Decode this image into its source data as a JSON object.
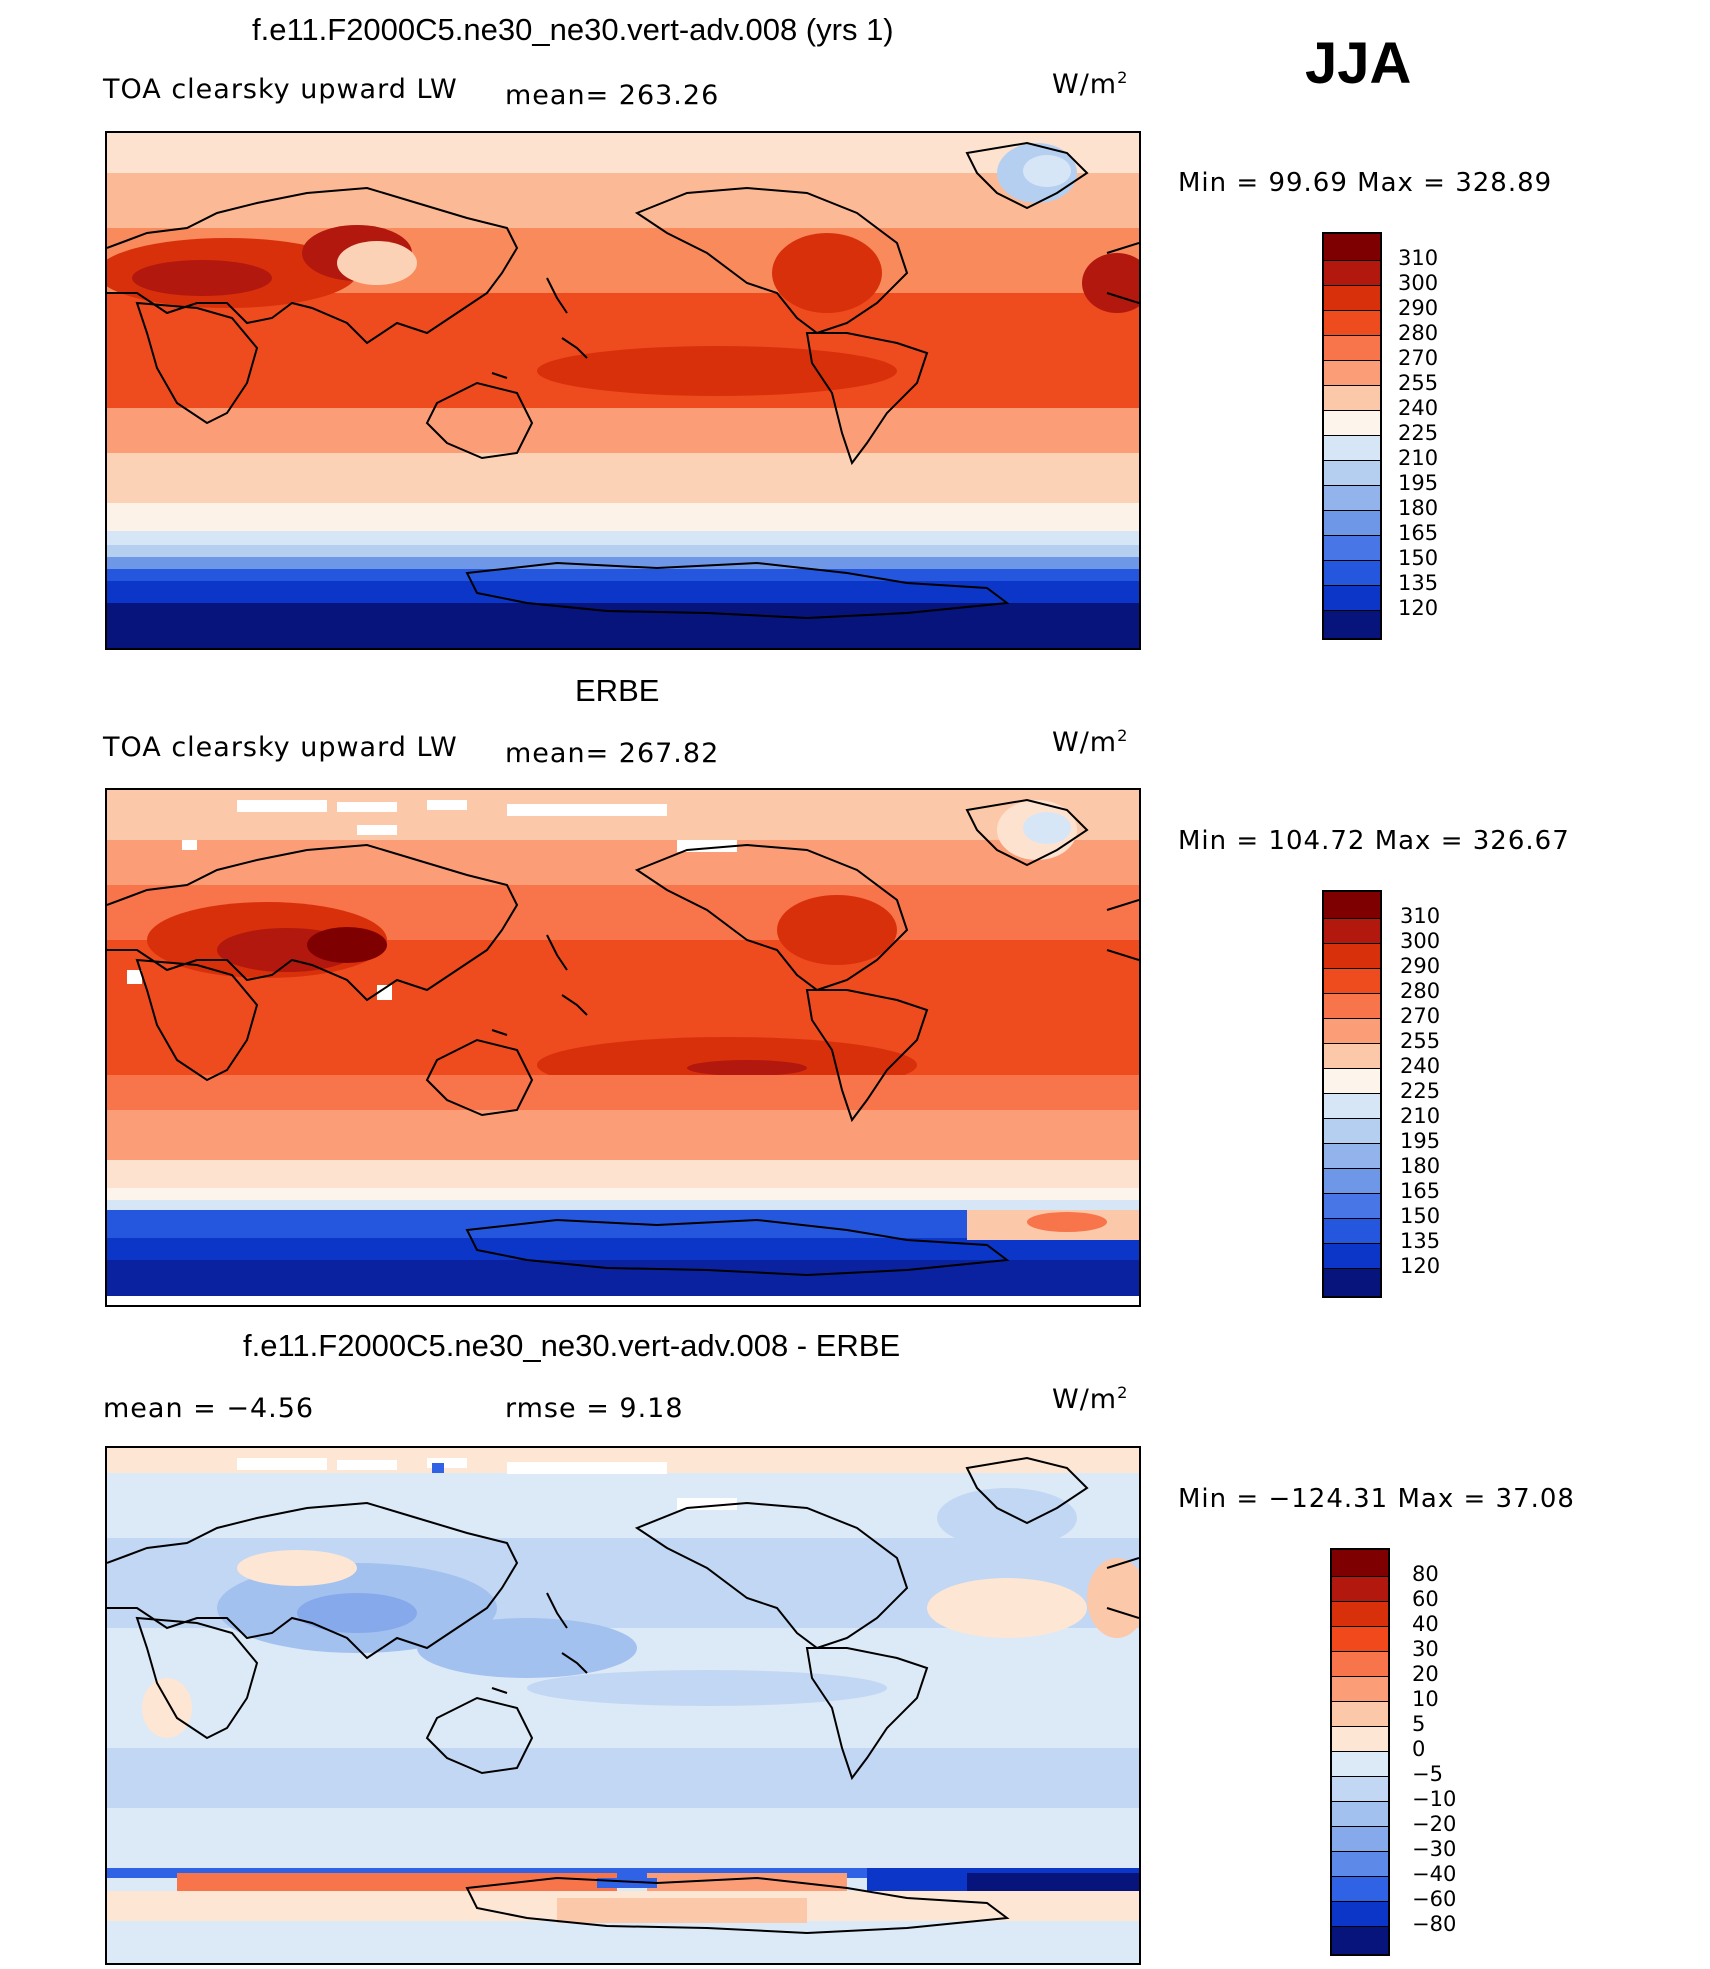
{
  "season": "JJA",
  "units_base": "W/m",
  "units_exp": "2",
  "panels": [
    {
      "title": "f.e11.F2000C5.ne30_ne30.vert-adv.008 (yrs 1)",
      "left_text": "TOA clearsky upward LW",
      "stat_text": "mean=  263.26",
      "minmax": "Min  =    99.69  Max  =  328.89",
      "levels": [
        "310",
        "300",
        "290",
        "280",
        "270",
        "255",
        "240",
        "225",
        "210",
        "195",
        "180",
        "165",
        "150",
        "135",
        "120"
      ]
    },
    {
      "title": "ERBE",
      "left_text": "TOA clearsky upward LW",
      "stat_text": "mean=  267.82",
      "minmax": "Min  =  104.72  Max  =  326.67",
      "levels": [
        "310",
        "300",
        "290",
        "280",
        "270",
        "255",
        "240",
        "225",
        "210",
        "195",
        "180",
        "165",
        "150",
        "135",
        "120"
      ]
    },
    {
      "title": "f.e11.F2000C5.ne30_ne30.vert-adv.008 - ERBE",
      "left_text": "mean  =    −4.56",
      "stat_text": "rmse  =     9.18",
      "minmax": "Min  =  −124.31  Max  =    37.08",
      "levels": [
        "80",
        "60",
        "40",
        "30",
        "20",
        "10",
        "5",
        "0",
        "−5",
        "−10",
        "−20",
        "−30",
        "−40",
        "−60",
        "−80"
      ]
    }
  ],
  "colors": {
    "abs_scale": [
      "#7f0000",
      "#b2180e",
      "#d9300c",
      "#ee4b1e",
      "#f8744a",
      "#fb9e78",
      "#fcc8aa",
      "#fee8d6",
      "#fdf5ec",
      "#d6e6f6",
      "#b5cff0",
      "#92b3ec",
      "#6f97e8",
      "#4876e6",
      "#2557de",
      "#0b36c8",
      "#0a22a0",
      "#06147c"
    ],
    "diff_scale": [
      "#7f0000",
      "#b2180e",
      "#d9300c",
      "#f2491c",
      "#f8744a",
      "#fb9e78",
      "#fcc8aa",
      "#fde6d4",
      "#dce9f7",
      "#c2d7f3",
      "#a3c1ef",
      "#86a9ec",
      "#5d8ae8",
      "#2f62e4",
      "#0b36c8",
      "#0a22a0",
      "#06147c"
    ]
  }
}
